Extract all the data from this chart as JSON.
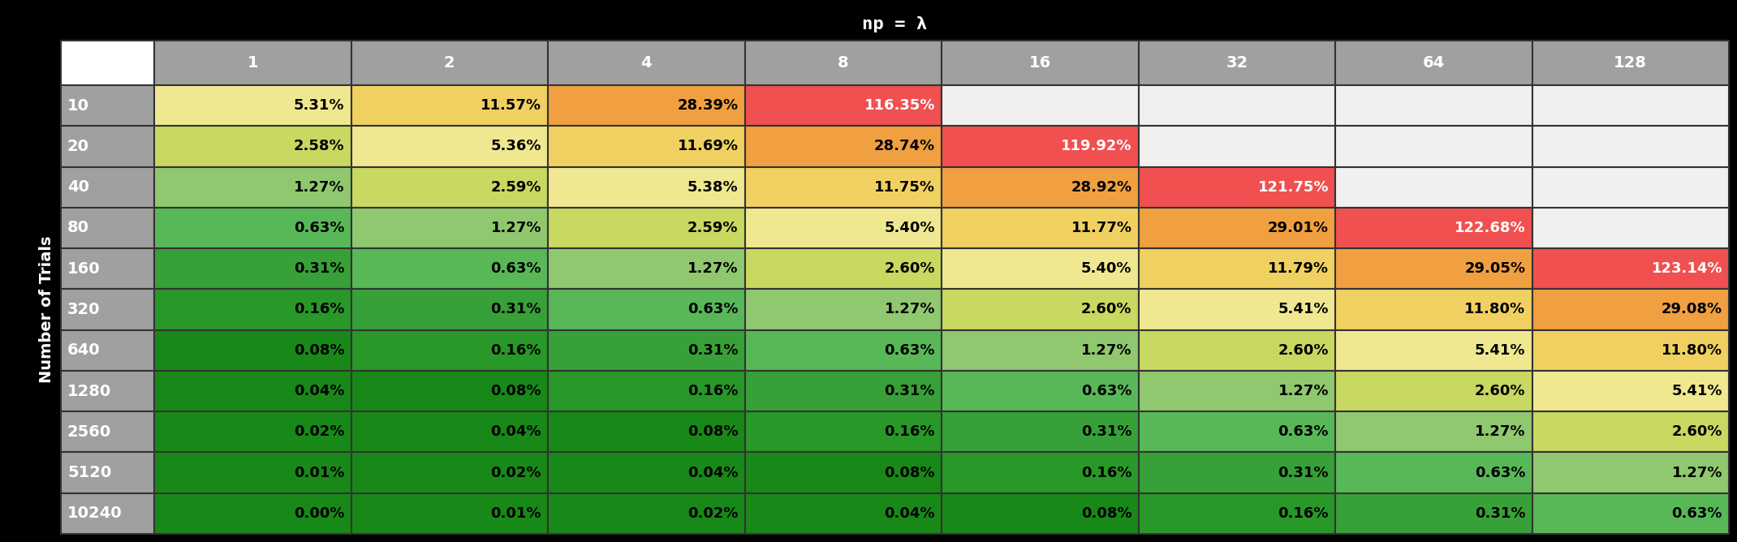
{
  "title": "np = λ",
  "col_labels": [
    "1",
    "2",
    "4",
    "8",
    "16",
    "32",
    "64",
    "128"
  ],
  "row_labels": [
    "10",
    "20",
    "40",
    "80",
    "160",
    "320",
    "640",
    "1280",
    "2560",
    "5120",
    "10240"
  ],
  "values": [
    [
      "5.31%",
      "11.57%",
      "28.39%",
      "116.35%",
      "",
      "",
      "",
      ""
    ],
    [
      "2.58%",
      "5.36%",
      "11.69%",
      "28.74%",
      "119.92%",
      "",
      "",
      ""
    ],
    [
      "1.27%",
      "2.59%",
      "5.38%",
      "11.75%",
      "28.92%",
      "121.75%",
      "",
      ""
    ],
    [
      "0.63%",
      "1.27%",
      "2.59%",
      "5.40%",
      "11.77%",
      "29.01%",
      "122.68%",
      ""
    ],
    [
      "0.31%",
      "0.63%",
      "1.27%",
      "2.60%",
      "5.40%",
      "11.79%",
      "29.05%",
      "123.14%"
    ],
    [
      "0.16%",
      "0.31%",
      "0.63%",
      "1.27%",
      "2.60%",
      "5.41%",
      "11.80%",
      "29.08%"
    ],
    [
      "0.08%",
      "0.16%",
      "0.31%",
      "0.63%",
      "1.27%",
      "2.60%",
      "5.41%",
      "11.80%"
    ],
    [
      "0.04%",
      "0.08%",
      "0.16%",
      "0.31%",
      "0.63%",
      "1.27%",
      "2.60%",
      "5.41%"
    ],
    [
      "0.02%",
      "0.04%",
      "0.08%",
      "0.16%",
      "0.31%",
      "0.63%",
      "1.27%",
      "2.60%"
    ],
    [
      "0.01%",
      "0.02%",
      "0.04%",
      "0.08%",
      "0.16%",
      "0.31%",
      "0.63%",
      "1.27%"
    ],
    [
      "0.00%",
      "0.01%",
      "0.02%",
      "0.04%",
      "0.08%",
      "0.16%",
      "0.31%",
      "0.63%"
    ]
  ],
  "background": "#000000",
  "col_header_bg": "#a0a0a0",
  "row_header_bg": "#a0a0a0",
  "empty_cell_bg": "#f0f0f0",
  "color_red": "#f05050",
  "color_orange": "#f0a040",
  "color_yellow": "#f0d060",
  "color_lightyellow": "#f0e890",
  "color_yellowgreen": "#c8d860",
  "color_lightgreen": "#90c870",
  "color_green": "#58b858",
  "color_darkgreen": "#38a038",
  "color_darkergreen": "#289828",
  "color_darkestgreen": "#188818",
  "text_black": "#000000",
  "text_white": "#ffffff",
  "ylabel": "Number of Trials",
  "border_color": "#333333",
  "border_width": 1.5,
  "title_fontsize": 16,
  "header_fontsize": 14,
  "cell_fontsize": 13,
  "ylabel_fontsize": 14,
  "row_label_fontsize": 14
}
